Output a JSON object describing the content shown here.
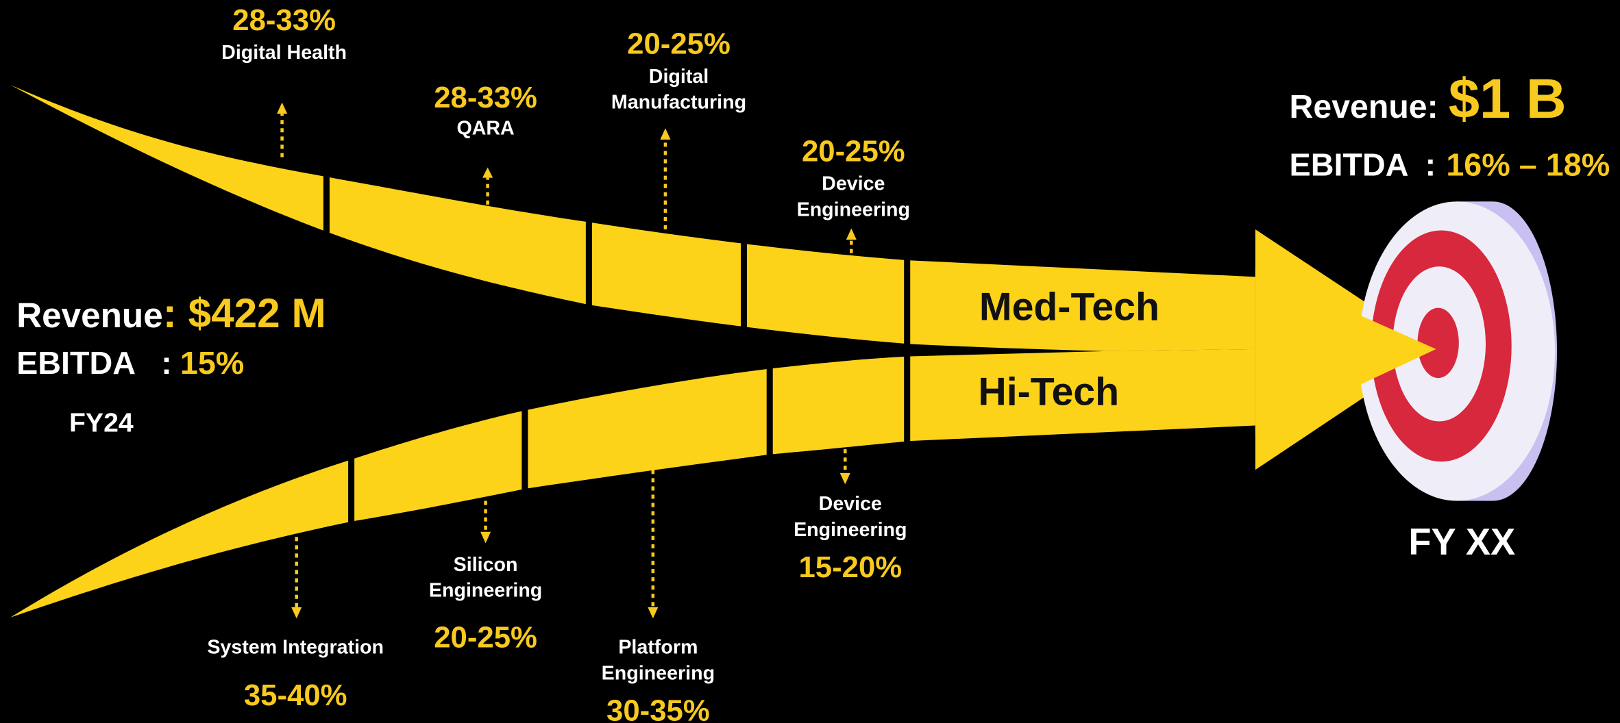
{
  "start": {
    "revenue_label": "Revenue",
    "revenue_value": ": $422 M",
    "ebitda_label": "EBITDA   :",
    "ebitda_value": "15%",
    "period": "FY24"
  },
  "end": {
    "revenue_label": "Revenue:",
    "revenue_value": "$1 B",
    "ebitda_label": "EBITDA  :",
    "ebitda_value": "16% – 18%",
    "period": "FY XX"
  },
  "med_tech": {
    "label": "Med-Tech",
    "segments": [
      {
        "range": "28-33%",
        "name_lines": [
          "Digital Health"
        ]
      },
      {
        "range": "28-33%",
        "name_lines": [
          "QARA"
        ]
      },
      {
        "range": "20-25%",
        "name_lines": [
          "Digital",
          "Manufacturing"
        ]
      },
      {
        "range": "20-25%",
        "name_lines": [
          "Device",
          "Engineering"
        ]
      }
    ]
  },
  "hi_tech": {
    "label": "Hi-Tech",
    "segments": [
      {
        "range": "35-40%",
        "name_lines": [
          "System Integration"
        ]
      },
      {
        "range": "20-25%",
        "name_lines": [
          "Silicon",
          "Engineering"
        ]
      },
      {
        "range": "30-35%",
        "name_lines": [
          "Platform",
          "Engineering"
        ]
      },
      {
        "range": "15-20%",
        "name_lines": [
          "Device",
          "Engineering"
        ]
      }
    ]
  }
}
